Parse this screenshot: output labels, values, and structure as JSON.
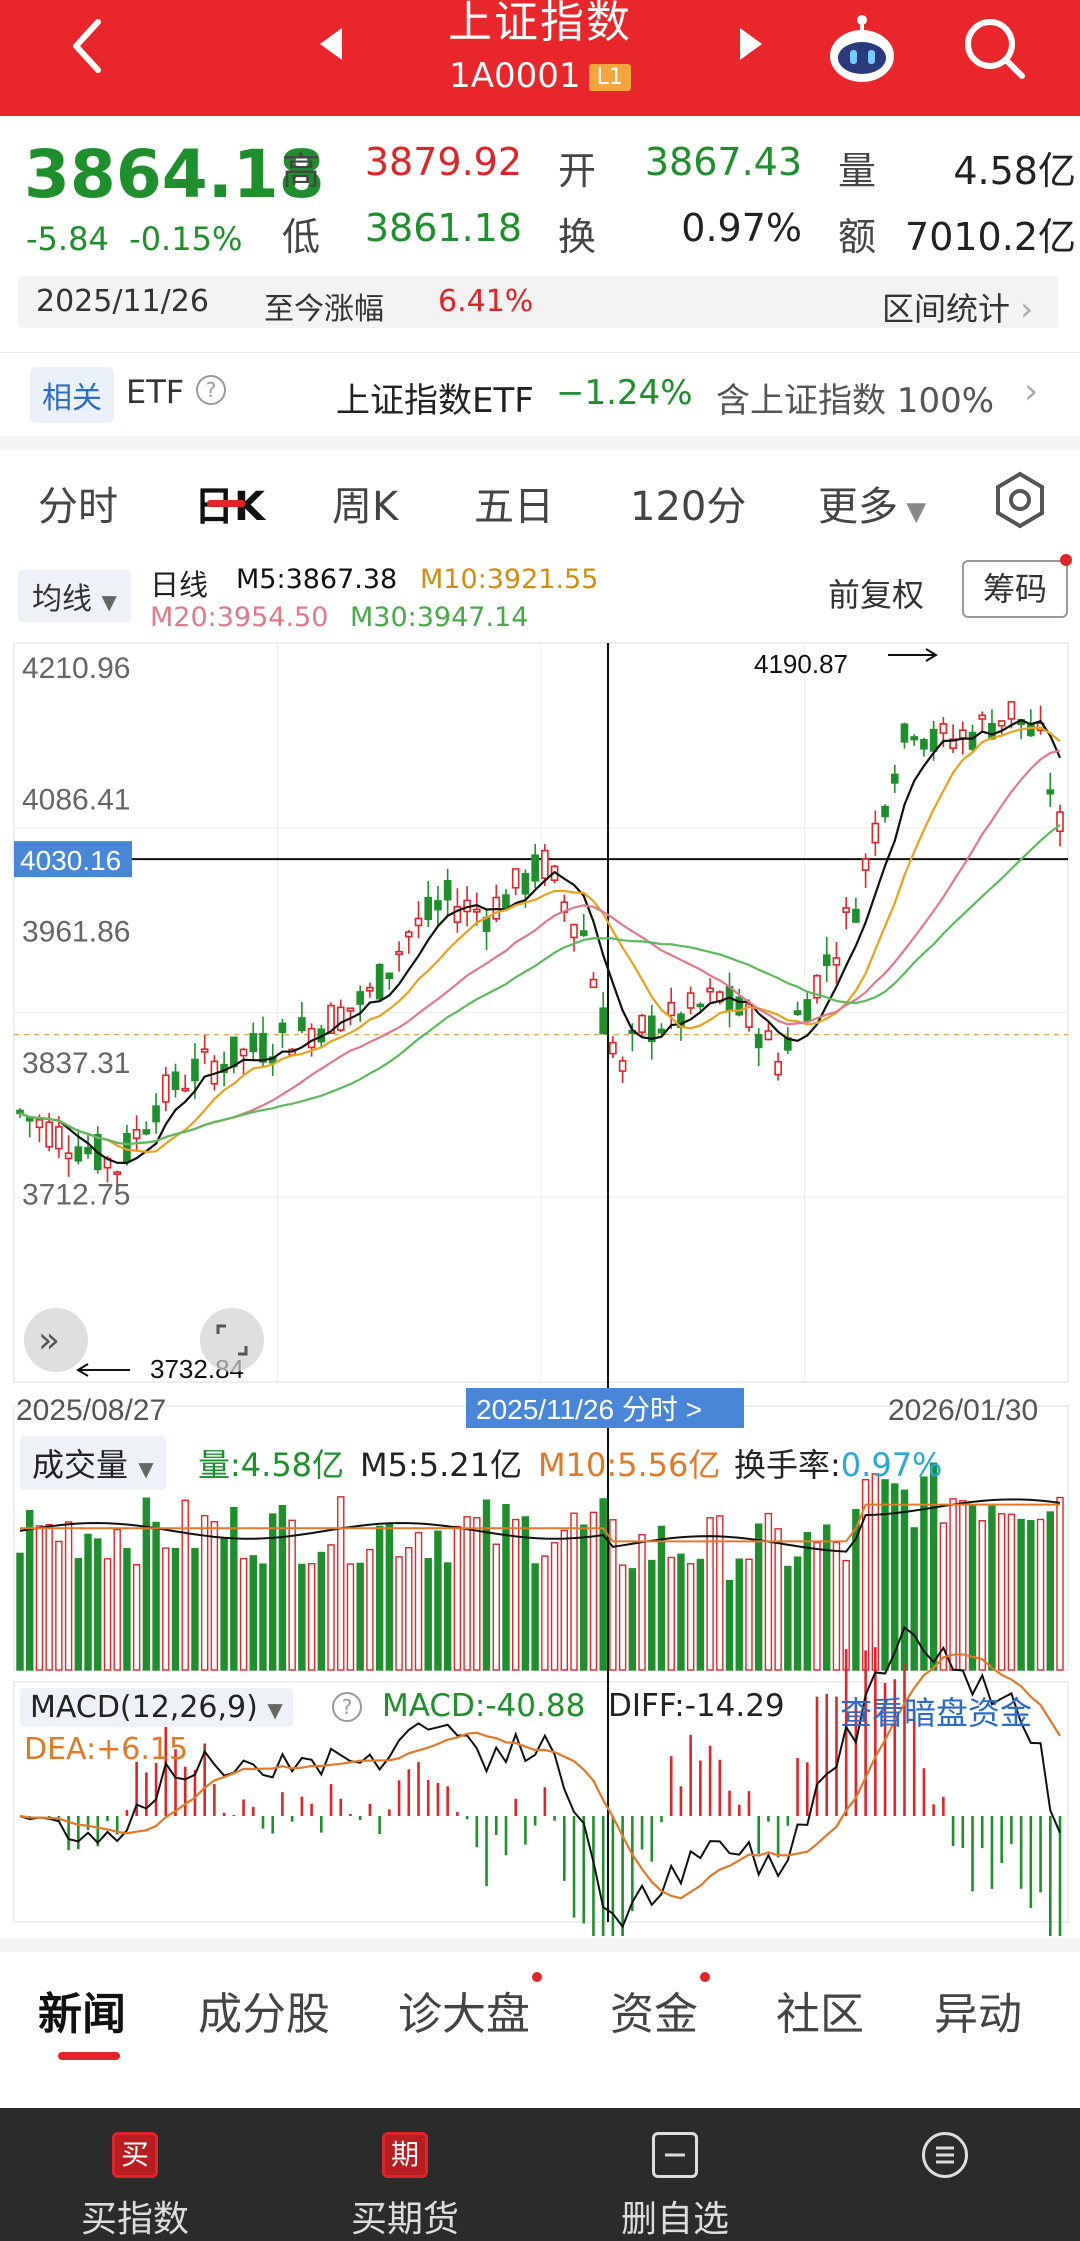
{
  "header": {
    "title": "上证指数",
    "code": "1A0001",
    "level_badge": "L1"
  },
  "quote": {
    "price": "3864.18",
    "change": "-5.84",
    "change_pct": "-0.15%",
    "high_label": "高",
    "high": "3879.92",
    "open_label": "开",
    "open": "3867.43",
    "volume_label": "量",
    "volume": "4.58亿",
    "low_label": "低",
    "low": "3861.18",
    "turnover_label": "换",
    "turnover": "0.97%",
    "amount_label": "额",
    "amount": "7010.2亿"
  },
  "range": {
    "date": "2025/11/26",
    "label": "至今涨幅",
    "value": "6.41%",
    "stat_button": "区间统计"
  },
  "etf_row": {
    "tag": "相关",
    "etf": "ETF",
    "help": "?",
    "name": "上证指数ETF",
    "pct": "−1.24%",
    "holding": "含上证指数 100%",
    "chevron": "›"
  },
  "tabs": [
    "分时",
    "日K",
    "周K",
    "五日",
    "120分",
    "更多"
  ],
  "indicators": {
    "ma_select": "均线",
    "period": "日线",
    "m5": "M5:3867.38",
    "m10": "M10:3921.55",
    "m20": "M20:3954.50",
    "m30": "M30:3947.14",
    "adjust": "前复权",
    "chip": "筹码"
  },
  "chart_labels": {
    "y_ticks": [
      "4210.96",
      "4086.41",
      "3961.86",
      "3837.31",
      "3712.75"
    ],
    "crosshair_value": "4030.16",
    "high_mark": "4190.87",
    "low_mark": "3732.84",
    "start_date": "2025/08/27",
    "cross_date": "2025/11/26 分时 >",
    "end_date": "2026/01/30"
  },
  "volume": {
    "label": "成交量",
    "amount": "量:4.58亿",
    "m5": "M5:5.21亿",
    "m10": "M10:5.56亿",
    "turnover_label": "换手率:",
    "turnover": "0.97%"
  },
  "macd": {
    "label": "MACD(12,26,9)",
    "help": "?",
    "macd": "MACD:-40.88",
    "diff": "DIFF:-14.29",
    "dea": "DEA:+6.15",
    "link": "查看暗盘资金"
  },
  "news_tabs": [
    "新闻",
    "成分股",
    "诊大盘",
    "资金",
    "社区",
    "异动"
  ],
  "bottom_bar": [
    {
      "label": "买指数",
      "icon": "买"
    },
    {
      "label": "买期货",
      "icon": "期"
    },
    {
      "label": "删自选",
      "icon": "minus-box-icon"
    },
    {
      "label": "",
      "icon": "menu-circle-icon"
    }
  ],
  "colors": {
    "up": "#e0242b",
    "down": "#1f8f2e",
    "ma5": "#111111",
    "ma10": "#e8a21b",
    "ma20": "#e07a8a",
    "ma30": "#5cba5c",
    "accent": "#e8262b"
  }
}
